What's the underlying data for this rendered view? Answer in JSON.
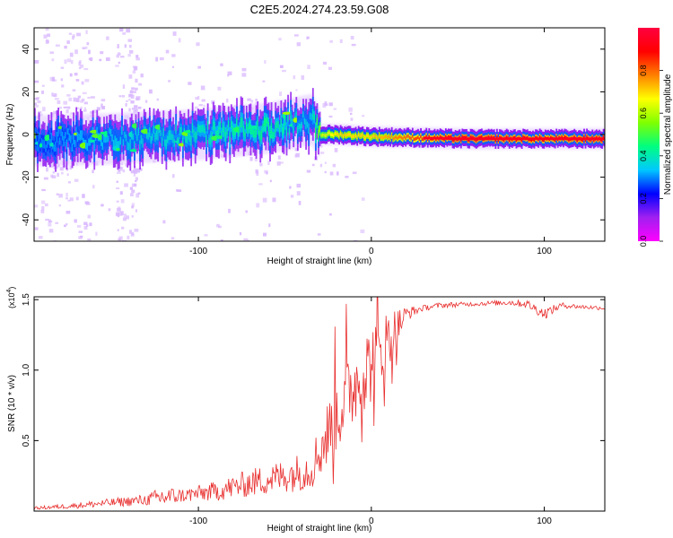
{
  "figure": {
    "title": "C2E5.2024.274.23.59.G08"
  },
  "chart_data": [
    {
      "type": "heatmap",
      "xlabel": "Height of straight line (km)",
      "ylabel": "Frequency (Hz)",
      "xlim": [
        -195,
        135
      ],
      "ylim": [
        -50,
        50
      ],
      "xticks": [
        -100,
        0,
        100
      ],
      "yticks": [
        -40,
        -20,
        0,
        20,
        40
      ],
      "colorbar": {
        "label": "Normalized spectral amplitude",
        "range": [
          0,
          1
        ],
        "ticks": [
          0.0,
          0.2,
          0.4,
          0.6,
          0.8
        ],
        "stops": [
          "#ff00ff",
          "#a020f0",
          "#0000ff",
          "#00c8ff",
          "#00ff80",
          "#80ff00",
          "#ffff00",
          "#ff8000",
          "#ff0000",
          "#ff0040"
        ]
      },
      "ridge": {
        "description_points_x": [
          -195,
          -150,
          -100,
          -60,
          -35,
          -30,
          -20,
          0,
          50,
          100,
          135
        ],
        "center_hz": [
          -3,
          -2,
          0,
          3,
          7,
          0,
          0,
          -1,
          -2,
          -2,
          -2
        ],
        "peak_amplitude": [
          0.3,
          0.35,
          0.4,
          0.45,
          0.35,
          0.6,
          0.7,
          0.7,
          0.95,
          0.9,
          0.95
        ]
      }
    },
    {
      "type": "line",
      "xlabel": "Height of straight line (km)",
      "ylabel": "SNR (10 * v/v)",
      "scale_label": "(x10",
      "scale_exp": "4",
      "scale_close": ")",
      "xlim": [
        -195,
        135
      ],
      "ylim": [
        0,
        1.52
      ],
      "xticks": [
        -100,
        0,
        100
      ],
      "yticks": [
        0.5,
        1.0,
        1.5
      ],
      "color": "#e8302f",
      "series": [
        {
          "x": [
            -195,
            -170,
            -150,
            -130,
            -120,
            -110,
            -90,
            -70,
            -50,
            -35,
            -25,
            -20,
            -10,
            0,
            10,
            20,
            30,
            40,
            60,
            80,
            90,
            100,
            110,
            120,
            135
          ],
          "y": [
            0.02,
            0.04,
            0.06,
            0.08,
            0.1,
            0.11,
            0.14,
            0.2,
            0.25,
            0.3,
            0.55,
            0.7,
            0.9,
            1.05,
            1.2,
            1.4,
            1.44,
            1.46,
            1.47,
            1.48,
            1.47,
            1.4,
            1.46,
            1.45,
            1.44
          ],
          "noise": [
            0.01,
            0.02,
            0.03,
            0.04,
            0.08,
            0.05,
            0.07,
            0.1,
            0.12,
            0.15,
            0.25,
            0.3,
            0.3,
            0.3,
            0.25,
            0.05,
            0.02,
            0.02,
            0.015,
            0.02,
            0.03,
            0.04,
            0.02,
            0.015,
            0.015
          ]
        }
      ]
    }
  ]
}
